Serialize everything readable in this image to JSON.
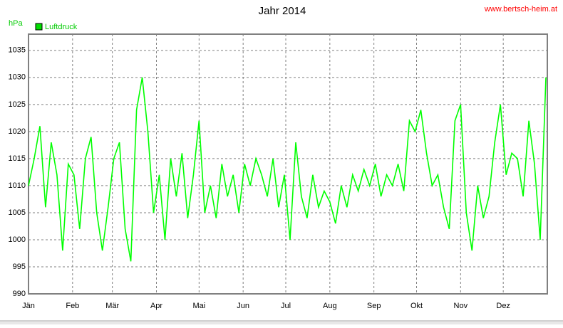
{
  "chart_data": {
    "type": "line",
    "title": "Jahr 2014",
    "source": "www.bertsch-heim.at",
    "y_label": "hPa",
    "x": [
      1,
      5,
      9,
      13,
      17,
      21,
      25,
      29,
      33,
      37,
      41,
      45,
      49,
      53,
      57,
      61,
      65,
      69,
      73,
      77,
      81,
      85,
      89,
      93,
      97,
      101,
      105,
      109,
      113,
      117,
      121,
      125,
      129,
      133,
      137,
      141,
      145,
      149,
      153,
      157,
      161,
      165,
      169,
      173,
      177,
      181,
      185,
      189,
      193,
      197,
      201,
      205,
      209,
      213,
      217,
      221,
      225,
      229,
      233,
      237,
      241,
      245,
      249,
      253,
      257,
      261,
      265,
      269,
      273,
      277,
      281,
      285,
      289,
      293,
      297,
      301,
      305,
      309,
      313,
      317,
      321,
      325,
      329,
      333,
      337,
      341,
      345,
      349,
      353,
      357,
      361,
      365
    ],
    "series": [
      {
        "name": "Luftdruck",
        "color": "#00ff00",
        "values": [
          1010,
          1015,
          1021,
          1006,
          1018,
          1012,
          998,
          1014,
          1012,
          1002,
          1015,
          1019,
          1005,
          998,
          1006,
          1015,
          1018,
          1002,
          996,
          1024,
          1030,
          1020,
          1005,
          1012,
          1000,
          1015,
          1008,
          1016,
          1004,
          1012,
          1022,
          1005,
          1010,
          1004,
          1014,
          1008,
          1012,
          1005,
          1014,
          1010,
          1015,
          1012,
          1008,
          1015,
          1006,
          1012,
          1000,
          1018,
          1008,
          1004,
          1012,
          1006,
          1009,
          1007,
          1003,
          1010,
          1006,
          1012,
          1009,
          1013,
          1010,
          1014,
          1008,
          1012,
          1010,
          1014,
          1009,
          1022,
          1020,
          1024,
          1016,
          1010,
          1012,
          1006,
          1002,
          1022,
          1025,
          1005,
          998,
          1010,
          1004,
          1008,
          1018,
          1025,
          1012,
          1016,
          1015,
          1008,
          1022,
          1014,
          1000,
          1030
        ]
      }
    ],
    "xlim": [
      1,
      366
    ],
    "xticks": [
      {
        "value": 1,
        "label": "Jän"
      },
      {
        "value": 32,
        "label": "Feb"
      },
      {
        "value": 60,
        "label": "Mär"
      },
      {
        "value": 91,
        "label": "Apr"
      },
      {
        "value": 121,
        "label": "Mai"
      },
      {
        "value": 152,
        "label": "Jun"
      },
      {
        "value": 182,
        "label": "Jul"
      },
      {
        "value": 213,
        "label": "Aug"
      },
      {
        "value": 244,
        "label": "Sep"
      },
      {
        "value": 274,
        "label": "Okt"
      },
      {
        "value": 305,
        "label": "Nov"
      },
      {
        "value": 335,
        "label": "Dez"
      }
    ],
    "ylim": [
      990,
      1038
    ],
    "yticks": [
      990,
      995,
      1000,
      1005,
      1010,
      1015,
      1020,
      1025,
      1030,
      1035
    ],
    "grid": true
  }
}
